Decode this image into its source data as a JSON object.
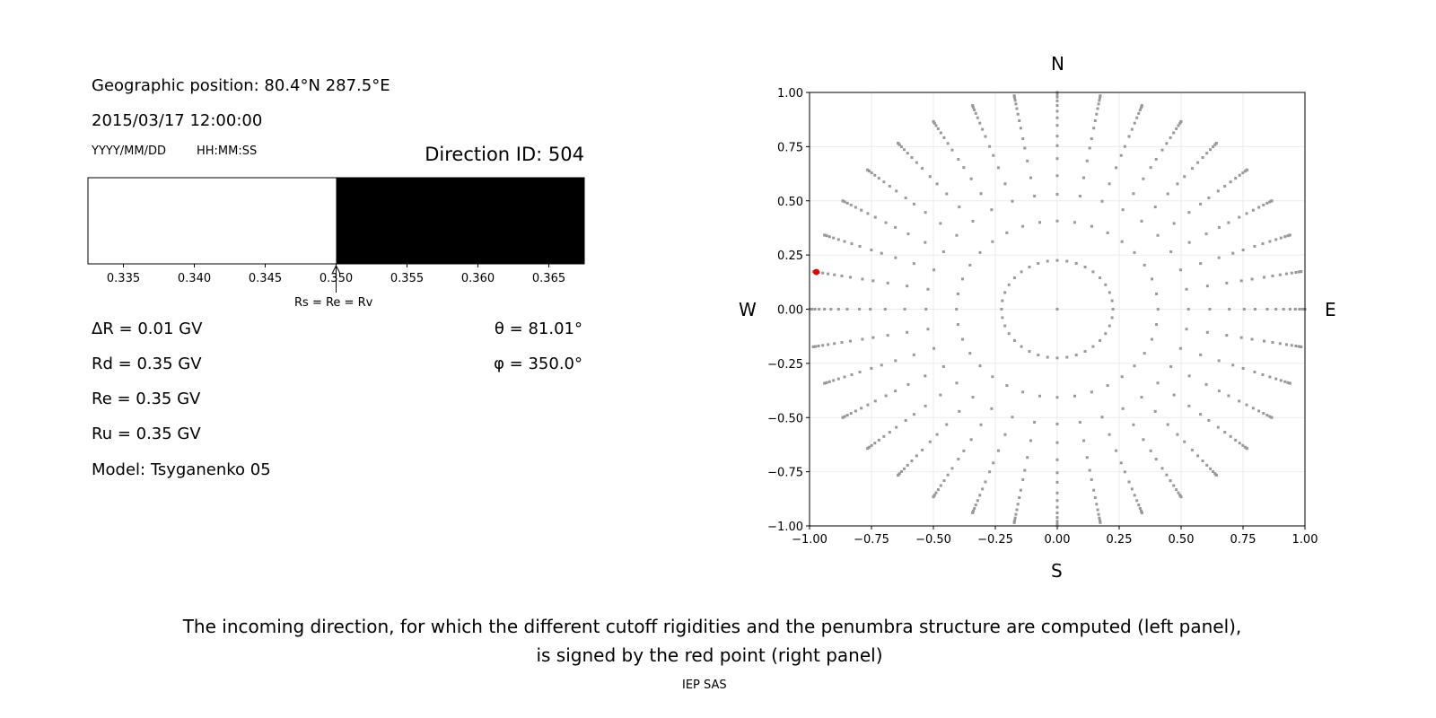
{
  "left_panel": {
    "geo_position": "Geographic position: 80.4°N 287.5°E",
    "datetime": "2015/03/17 12:00:00",
    "date_format": "YYYY/MM/DD",
    "time_format": "HH:MM:SS",
    "direction_id": "Direction ID: 504",
    "delta_r": "ΔR = 0.01 GV",
    "rd": "Rd = 0.35 GV",
    "re": "Re = 0.35 GV",
    "ru": "Ru = 0.35 GV",
    "model": "Model: Tsyganenko 05",
    "theta": "θ = 81.01°",
    "phi": "φ = 350.0°",
    "arrow_label": "Rs = Re = Rv"
  },
  "chart_data": [
    {
      "type": "bar",
      "description_kind": "penumbra strip",
      "xlim": [
        0.3325,
        0.3675
      ],
      "xticks": [
        "0.335",
        "0.340",
        "0.345",
        "0.350",
        "0.355",
        "0.360",
        "0.365"
      ],
      "xtick_values": [
        0.335,
        0.34,
        0.345,
        0.35,
        0.355,
        0.36,
        0.365
      ],
      "segments": [
        {
          "from": 0.3325,
          "to": 0.35,
          "color": "#ffffff"
        },
        {
          "from": 0.35,
          "to": 0.3675,
          "color": "#000000"
        }
      ],
      "arrow_at": 0.35
    },
    {
      "type": "scatter",
      "xlim": [
        -1,
        1
      ],
      "ylim": [
        -1,
        1
      ],
      "xticks": [
        "−1.00",
        "−0.75",
        "−0.50",
        "−0.25",
        "0.00",
        "0.25",
        "0.50",
        "0.75",
        "1.00"
      ],
      "yticks": [
        "−1.00",
        "−0.75",
        "−0.50",
        "−0.25",
        "0.00",
        "0.25",
        "0.50",
        "0.75",
        "1.00"
      ],
      "tick_values": [
        -1,
        -0.75,
        -0.5,
        -0.25,
        0,
        0.25,
        0.5,
        0.75,
        1
      ],
      "grid": true,
      "compass": {
        "n": "N",
        "s": "S",
        "e": "E",
        "w": "W"
      },
      "grid_zenith_deg": [
        13,
        24,
        32,
        38,
        44,
        49,
        53,
        58,
        62,
        66,
        70,
        74,
        78,
        82,
        86,
        90
      ],
      "grid_azimuth_step_deg": 10,
      "grid_color": "#999999",
      "selected": {
        "theta_deg": 81.01,
        "phi_deg": 350.0,
        "color": "#e00000"
      }
    }
  ],
  "caption": {
    "line1": "The incoming direction, for which the different cutoff rigidities and the penumbra structure are computed (left panel),",
    "line2": "is signed by the red point (right panel)"
  },
  "credit": "IEP SAS"
}
